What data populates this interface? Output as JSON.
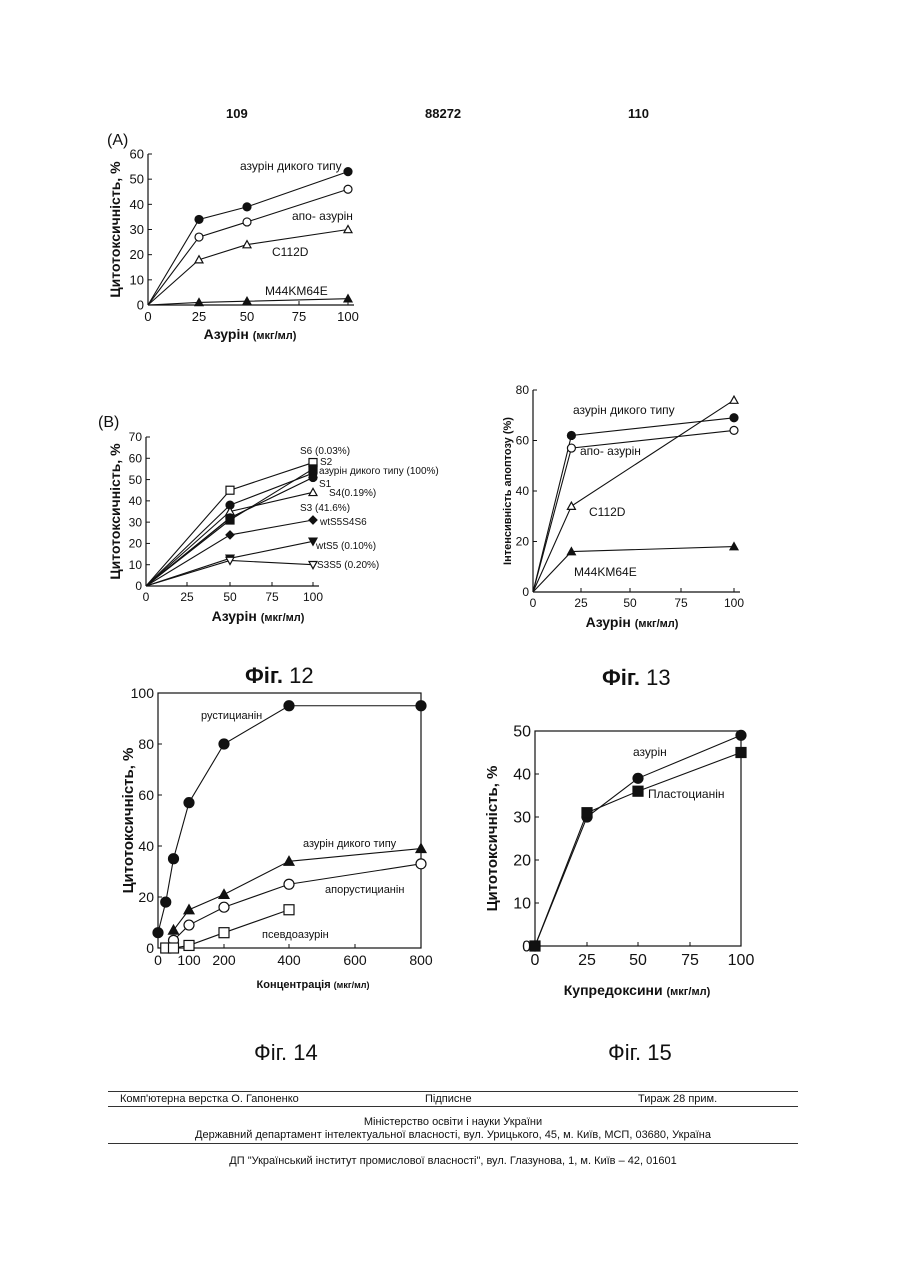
{
  "header": {
    "left_page": "109",
    "patent_no": "88272",
    "right_page": "110"
  },
  "captions": {
    "fig12": {
      "word": "Фіг.",
      "num": "12"
    },
    "fig13": {
      "word": "Фіг.",
      "num": "13"
    },
    "fig14": {
      "word": "Фіг.",
      "num": "14"
    },
    "fig15": {
      "word": "Фіг.",
      "num": "15"
    }
  },
  "footer": {
    "layout": "Комп'ютерна верстка О. Гапоненко",
    "signed": "Підписне",
    "circulation": "Тираж 28 прим.",
    "ministry": "Міністерство освіти і науки України",
    "department": "Державний департамент інтелектуальної власності, вул. Урицького, 45, м. Київ, МСП, 03680, Україна",
    "institute": "ДП \"Український інститут промислової власності\", вул. Глазунова, 1, м. Київ – 42, 01601"
  },
  "chart_data": [
    {
      "id": "A",
      "type": "line",
      "panel_label": "(A)",
      "xlabel": "Азурін",
      "xunit": "(мкг/мл)",
      "ylabel": "Цитотоксичність, %",
      "xlim": [
        0,
        100
      ],
      "ylim": [
        0,
        60
      ],
      "xticks": [
        0,
        25,
        50,
        75,
        100
      ],
      "yticks": [
        0,
        10,
        20,
        30,
        40,
        50,
        60
      ],
      "series": [
        {
          "name": "азурін дикого типу",
          "marker": "filled-circle",
          "x": [
            0,
            25,
            50,
            100
          ],
          "y": [
            0,
            34,
            39,
            53
          ]
        },
        {
          "name": "апо- азурін",
          "marker": "open-circle",
          "x": [
            0,
            25,
            50,
            100
          ],
          "y": [
            0,
            27,
            33,
            46
          ]
        },
        {
          "name": "C112D",
          "marker": "open-triangle",
          "x": [
            0,
            25,
            50,
            100
          ],
          "y": [
            0,
            18,
            24,
            30
          ]
        },
        {
          "name": "M44KM64E",
          "marker": "filled-triangle",
          "x": [
            0,
            25,
            50,
            100
          ],
          "y": [
            0,
            1,
            1.5,
            2.5
          ]
        }
      ]
    },
    {
      "id": "B",
      "type": "line",
      "panel_label": "(B)",
      "xlabel": "Азурін",
      "xunit": "(мкг/мл)",
      "ylabel": "Цитотоксичність, %",
      "xlim": [
        0,
        100
      ],
      "ylim": [
        0,
        70
      ],
      "xticks": [
        0,
        25,
        50,
        75,
        100
      ],
      "yticks": [
        0,
        10,
        20,
        30,
        40,
        50,
        60,
        70
      ],
      "series": [
        {
          "name": "S6 (0.03%)",
          "marker": "open-square",
          "x": [
            0,
            50,
            100
          ],
          "y": [
            0,
            45,
            58
          ]
        },
        {
          "name": "S2",
          "marker": "filled-square",
          "x": [
            0,
            50,
            100
          ],
          "y": [
            0,
            31,
            55
          ]
        },
        {
          "name": "азурін дикого типу (100%)",
          "marker": "filled-circle",
          "x": [
            0,
            50,
            100
          ],
          "y": [
            0,
            38,
            53
          ]
        },
        {
          "name": "S1",
          "marker": "filled-diamond",
          "x": [
            0,
            50,
            100
          ],
          "y": [
            0,
            32,
            51
          ]
        },
        {
          "name": "S4(0.19%)",
          "marker": "open-triangle",
          "x": [
            0,
            50,
            100
          ],
          "y": [
            0,
            35,
            44
          ]
        },
        {
          "name": "S3 (41.6%)",
          "marker": "filled-circle",
          "x": [
            0,
            50,
            100
          ],
          "y": [
            0,
            32,
            51
          ]
        },
        {
          "name": "wtS5S4S6",
          "marker": "filled-diamond",
          "x": [
            0,
            50,
            100
          ],
          "y": [
            0,
            24,
            31
          ]
        },
        {
          "name": "wtS5 (0.10%)",
          "marker": "filled-triangle-down",
          "x": [
            0,
            50,
            100
          ],
          "y": [
            0,
            13,
            21
          ]
        },
        {
          "name": "S3S5 (0.20%)",
          "marker": "open-triangle-down",
          "x": [
            0,
            50,
            100
          ],
          "y": [
            0,
            12,
            10
          ]
        }
      ]
    },
    {
      "id": "13",
      "type": "line",
      "xlabel": "Азурін",
      "xunit": "(мкг/мл)",
      "ylabel": "Інтенсивність апоптозу (%)",
      "xlim": [
        0,
        100
      ],
      "ylim": [
        0,
        80
      ],
      "xticks": [
        0,
        25,
        50,
        75,
        100
      ],
      "yticks": [
        0,
        20,
        40,
        60,
        80
      ],
      "series": [
        {
          "name": "азурін дикого типу",
          "marker": "filled-circle",
          "x": [
            0,
            20,
            100
          ],
          "y": [
            0,
            62,
            69
          ]
        },
        {
          "name": "апо- азурін",
          "marker": "open-circle",
          "x": [
            0,
            20,
            100
          ],
          "y": [
            0,
            57,
            64
          ]
        },
        {
          "name": "C112D",
          "marker": "open-triangle",
          "x": [
            0,
            20,
            100
          ],
          "y": [
            0,
            34,
            76
          ]
        },
        {
          "name": "M44KM64E",
          "marker": "filled-triangle",
          "x": [
            0,
            20,
            100
          ],
          "y": [
            0,
            16,
            18
          ]
        }
      ]
    },
    {
      "id": "14",
      "type": "line",
      "xlabel": "Концентрація",
      "xunit": "(мкг/мл)",
      "ylabel": "Цитотоксичність, %",
      "xlim": [
        0,
        800
      ],
      "ylim": [
        0,
        100
      ],
      "xticks": [
        0,
        100,
        200,
        400,
        600,
        800
      ],
      "yticks": [
        0,
        20,
        40,
        60,
        80,
        100
      ],
      "series": [
        {
          "name": "рустицианін",
          "marker": "filled-circle",
          "x": [
            0,
            25,
            50,
            100,
            200,
            400,
            800
          ],
          "y": [
            6,
            18,
            35,
            57,
            80,
            95,
            95
          ]
        },
        {
          "name": "азурін дикого типу",
          "marker": "filled-triangle",
          "x": [
            50,
            100,
            200,
            400,
            800
          ],
          "y": [
            7,
            15,
            21,
            34,
            39
          ]
        },
        {
          "name": "апорустицианін",
          "marker": "open-circle",
          "x": [
            50,
            100,
            200,
            400,
            800
          ],
          "y": [
            3,
            9,
            16,
            25,
            33
          ]
        },
        {
          "name": "псевдоазурін",
          "marker": "open-square",
          "x": [
            0,
            25,
            50,
            100,
            200,
            400
          ],
          "y": [
            0,
            0,
            0,
            1,
            6,
            15
          ]
        }
      ]
    },
    {
      "id": "15",
      "type": "line",
      "xlabel": "Купредоксини",
      "xunit": "(мкг/мл)",
      "ylabel": "Цитотоксичність, %",
      "xlim": [
        0,
        100
      ],
      "ylim": [
        0,
        50
      ],
      "xticks": [
        0,
        25,
        50,
        75,
        100
      ],
      "yticks": [
        0,
        10,
        20,
        30,
        40,
        50
      ],
      "series": [
        {
          "name": "азурін",
          "marker": "filled-circle",
          "x": [
            0,
            25,
            50,
            100
          ],
          "y": [
            0,
            30,
            39,
            49
          ]
        },
        {
          "name": "Пластоцианін",
          "marker": "filled-square",
          "x": [
            0,
            25,
            50,
            100
          ],
          "y": [
            0,
            31,
            36,
            45
          ]
        }
      ]
    }
  ]
}
